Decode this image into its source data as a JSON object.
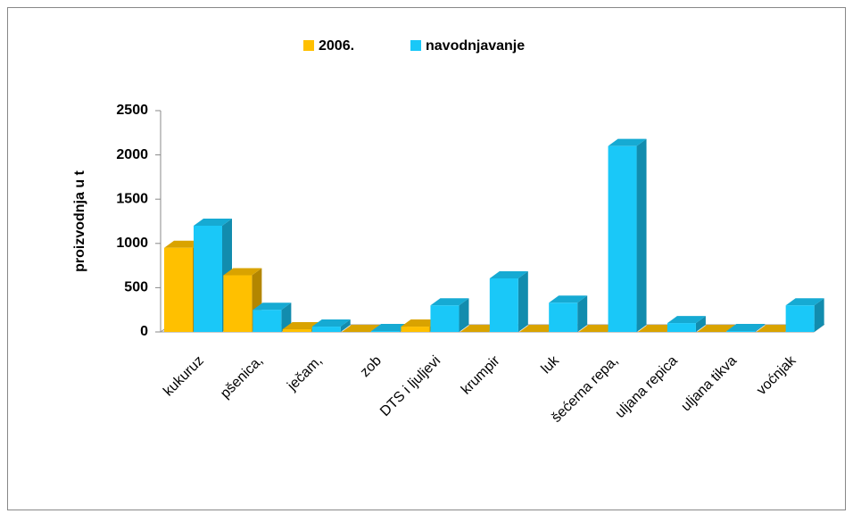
{
  "chart_data": {
    "type": "bar3d",
    "y_label": "proizvodnja u t",
    "categories": [
      "kukuruz",
      "pšenica,",
      "ječam,",
      "zob",
      "DTS i ljuljevi",
      "krumpir",
      "luk",
      "šećerna repa,",
      "uljana repica",
      "uljana tikva",
      "voćnjak"
    ],
    "series": [
      {
        "name": "2006.",
        "color": "#ffc000",
        "values": [
          950,
          640,
          30,
          0,
          60,
          0,
          0,
          0,
          0,
          0,
          0
        ]
      },
      {
        "name": "navodnjavanje",
        "color": "#1ac8f8",
        "values": [
          1200,
          250,
          60,
          10,
          300,
          605,
          330,
          2100,
          100,
          10,
          300
        ]
      }
    ],
    "ylim": [
      0,
      2500
    ],
    "yticks": [
      0,
      500,
      1000,
      1500,
      2000,
      2500
    ]
  }
}
